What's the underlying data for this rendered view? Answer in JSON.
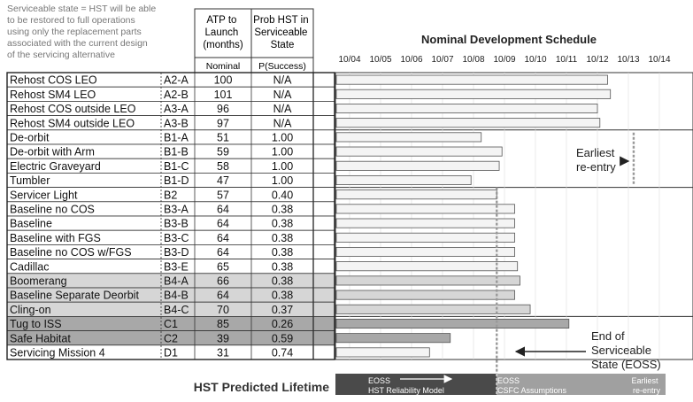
{
  "header": {
    "note_lines": [
      "Serviceable state = HST will be able",
      "to be restored to full operations",
      "using only the replacement parts",
      "associated with the current design",
      "of the servicing alternative"
    ],
    "atp_header_lines": [
      "ATP to",
      "Launch",
      "(months)"
    ],
    "prob_header_lines": [
      "Prob HST in",
      "Serviceable",
      "State"
    ],
    "atp_subheader": "Nominal",
    "prob_subheader": "P(Success)",
    "schedule_title": "Nominal Development Schedule"
  },
  "chart_data": {
    "type": "bar",
    "x_axis_labels": [
      "10/04",
      "10/05",
      "10/06",
      "10/07",
      "10/08",
      "10/09",
      "10/10",
      "10/11",
      "10/12",
      "10/13",
      "10/14"
    ],
    "xlim_years": [
      2004.75,
      2014.75
    ],
    "rows": [
      {
        "name": "Rehost COS LEO",
        "code": "A2-A",
        "atp": "100",
        "prob": "N/A",
        "end": 2013.08,
        "group": 1,
        "shade": "white"
      },
      {
        "name": "Rehost SM4 LEO",
        "code": "A2-B",
        "atp": "101",
        "prob": "N/A",
        "end": 2013.17,
        "group": 1,
        "shade": "white"
      },
      {
        "name": "Rehost COS outside LEO",
        "code": "A3-A",
        "atp": "96",
        "prob": "N/A",
        "end": 2012.75,
        "group": 1,
        "shade": "white"
      },
      {
        "name": "Rehost SM4 outside LEO",
        "code": "A3-B",
        "atp": "97",
        "prob": "N/A",
        "end": 2012.83,
        "group": 1,
        "shade": "white"
      },
      {
        "name": "De-orbit",
        "code": "B1-A",
        "atp": "51",
        "prob": "1.00",
        "end": 2009.0,
        "group": 2,
        "shade": "white"
      },
      {
        "name": "De-orbit with Arm",
        "code": "B1-B",
        "atp": "59",
        "prob": "1.00",
        "end": 2009.67,
        "group": 2,
        "shade": "white"
      },
      {
        "name": "Electric Graveyard",
        "code": "B1-C",
        "atp": "58",
        "prob": "1.00",
        "end": 2009.58,
        "group": 2,
        "shade": "white"
      },
      {
        "name": "Tumbler",
        "code": "B1-D",
        "atp": "47",
        "prob": "1.00",
        "end": 2008.67,
        "group": 2,
        "shade": "white"
      },
      {
        "name": "Servicer Light",
        "code": "B2",
        "atp": "57",
        "prob": "0.40",
        "end": 2009.5,
        "group": 3,
        "shade": "white"
      },
      {
        "name": "Baseline no COS",
        "code": "B3-A",
        "atp": "64",
        "prob": "0.38",
        "end": 2010.08,
        "group": 3,
        "shade": "white"
      },
      {
        "name": "Baseline",
        "code": "B3-B",
        "atp": "64",
        "prob": "0.38",
        "end": 2010.08,
        "group": 3,
        "shade": "white"
      },
      {
        "name": "Baseline with FGS",
        "code": "B3-C",
        "atp": "64",
        "prob": "0.38",
        "end": 2010.08,
        "group": 3,
        "shade": "white"
      },
      {
        "name": "Baseline no COS w/FGS",
        "code": "B3-D",
        "atp": "64",
        "prob": "0.38",
        "end": 2010.08,
        "group": 3,
        "shade": "white"
      },
      {
        "name": "Cadillac",
        "code": "B3-E",
        "atp": "65",
        "prob": "0.38",
        "end": 2010.17,
        "group": 3,
        "shade": "white"
      },
      {
        "name": "Boomerang",
        "code": "B4-A",
        "atp": "66",
        "prob": "0.38",
        "end": 2010.25,
        "group": 3,
        "shade": "light"
      },
      {
        "name": "Baseline Separate Deorbit",
        "code": "B4-B",
        "atp": "64",
        "prob": "0.38",
        "end": 2010.08,
        "group": 3,
        "shade": "light"
      },
      {
        "name": "Cling-on",
        "code": "B4-C",
        "atp": "70",
        "prob": "0.37",
        "end": 2010.58,
        "group": 3,
        "shade": "light"
      },
      {
        "name": "Tug to ISS",
        "code": "C1",
        "atp": "85",
        "prob": "0.26",
        "end": 2011.83,
        "group": 4,
        "shade": "dark"
      },
      {
        "name": "Safe Habitat",
        "code": "C2",
        "atp": "39",
        "prob": "0.59",
        "end": 2008.0,
        "group": 4,
        "shade": "dark"
      },
      {
        "name": "Servicing Mission 4",
        "code": "D1",
        "atp": "31",
        "prob": "0.74",
        "end": 2007.33,
        "group": 4,
        "shade": "white"
      }
    ],
    "eoss_line_x": 2009.5,
    "earliest_reentry_x": 2013.92,
    "annotations": {
      "earliest_reentry": [
        "Earliest",
        "re-entry"
      ],
      "eoss": [
        "End of",
        "Serviceable",
        "State (EOSS)"
      ]
    },
    "lifetime_bar": {
      "dark_segment_end_x": 2009.5,
      "label_left": [
        "EOSS",
        "HST Reliability Model"
      ],
      "label_mid": [
        "EOSS",
        "CSFC Assumptions"
      ],
      "label_right": [
        "Earliest",
        "re-entry"
      ]
    },
    "lifetime_title": "HST Predicted Lifetime"
  },
  "colors": {
    "bar_fill": "#f4f4f4",
    "row_light": "#d6d6d6",
    "row_dark": "#a8a8a8",
    "lifetime_dark": "#4a4a4a",
    "lifetime_light": "#a0a0a0",
    "eoss_line": "#999999"
  }
}
